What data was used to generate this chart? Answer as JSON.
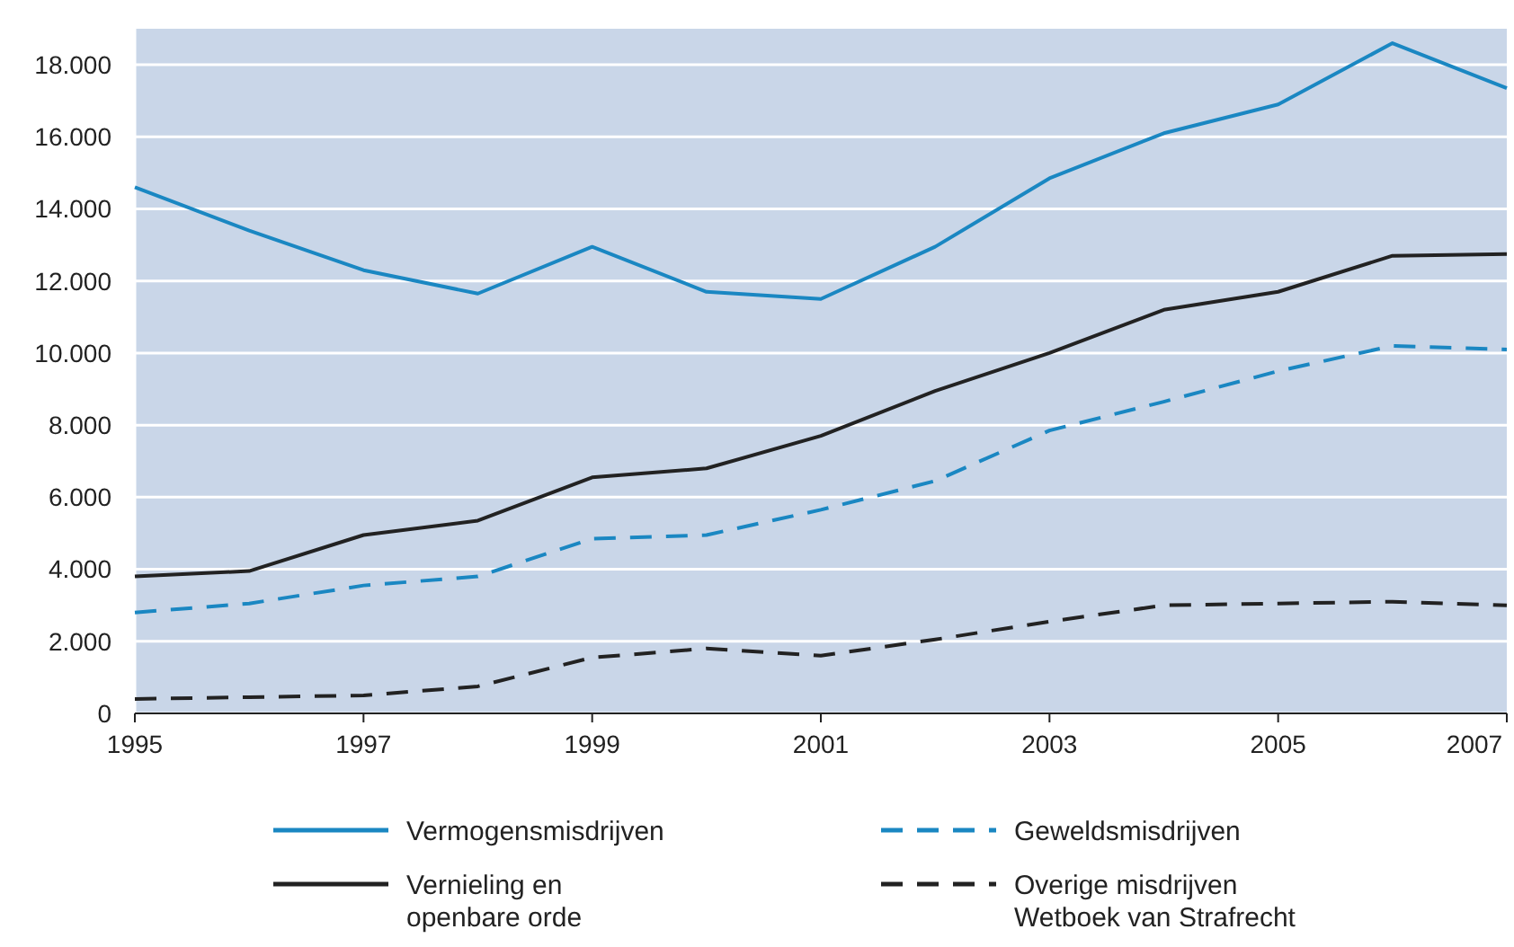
{
  "chart_data": {
    "type": "line",
    "x": [
      1995,
      1996,
      1997,
      1998,
      1999,
      2000,
      2001,
      2002,
      2003,
      2004,
      2005,
      2006,
      2007
    ],
    "xlim": [
      1995,
      2007
    ],
    "xticks": [
      1995,
      1997,
      1999,
      2001,
      2003,
      2005,
      2007
    ],
    "ylim": [
      0,
      19000
    ],
    "yticks": [
      {
        "value": 0,
        "label": "0"
      },
      {
        "value": 2000,
        "label": "2.000"
      },
      {
        "value": 4000,
        "label": "4.000"
      },
      {
        "value": 6000,
        "label": "6.000"
      },
      {
        "value": 8000,
        "label": "8.000"
      },
      {
        "value": 10000,
        "label": "10.000"
      },
      {
        "value": 12000,
        "label": "12.000"
      },
      {
        "value": 14000,
        "label": "14.000"
      },
      {
        "value": 16000,
        "label": "16.000"
      },
      {
        "value": 18000,
        "label": "18.000"
      }
    ],
    "grid": "y",
    "legend": "bottom",
    "marker": "none",
    "series": [
      {
        "name": "Vermogensmisdrijven",
        "color": "#1a87c2",
        "line_style": "solid",
        "values": [
          14600,
          13400,
          12300,
          11650,
          12950,
          11700,
          11500,
          12950,
          14850,
          16100,
          16900,
          18600,
          17350
        ]
      },
      {
        "name": "Vernieling en openbare orde",
        "color": "#222222",
        "line_style": "solid",
        "values": [
          3800,
          3950,
          4950,
          5350,
          6550,
          6800,
          7700,
          8950,
          10000,
          11200,
          11700,
          12700,
          12750
        ]
      },
      {
        "name": "Geweldsmisdrijven",
        "color": "#1a87c2",
        "line_style": "dashed",
        "values": [
          2800,
          3050,
          3550,
          3800,
          4850,
          4950,
          5650,
          6450,
          7850,
          8650,
          9500,
          10200,
          10100
        ]
      },
      {
        "name": "Overige misdrijven Wetboek van Strafrecht",
        "color": "#222222",
        "line_style": "dashed",
        "values": [
          400,
          450,
          500,
          750,
          1550,
          1800,
          1600,
          2050,
          2550,
          3000,
          3050,
          3100,
          3000
        ]
      }
    ]
  }
}
